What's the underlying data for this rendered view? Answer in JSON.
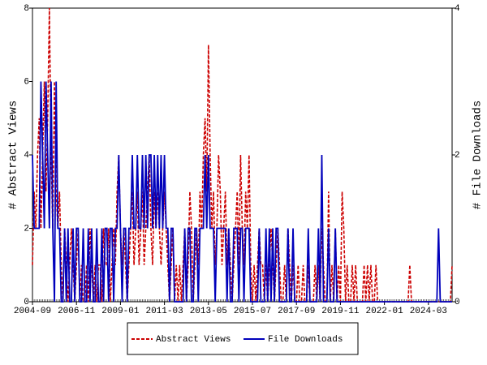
{
  "chart_data": {
    "type": "line",
    "y_label": "# Abstract Views",
    "y2_label": "# File Downloads",
    "ylim": [
      0,
      8
    ],
    "yticks": [
      0,
      2,
      4,
      6,
      8
    ],
    "y2lim": [
      0,
      4
    ],
    "y2ticks": [
      0,
      2,
      4
    ],
    "xticks": [
      "2004-09",
      "2006-11",
      "2009-01",
      "2011-03",
      "2013-05",
      "2015-07",
      "2017-09",
      "2019-11",
      "2022-01",
      "2024-03"
    ],
    "x": [
      "2004-09",
      "2004-10",
      "2004-11",
      "2004-12",
      "2005-01",
      "2005-02",
      "2005-03",
      "2005-04",
      "2005-05",
      "2005-06",
      "2005-07",
      "2005-08",
      "2005-09",
      "2005-10",
      "2005-11",
      "2005-12",
      "2006-01",
      "2006-02",
      "2006-03",
      "2006-04",
      "2006-05",
      "2006-06",
      "2006-07",
      "2006-08",
      "2006-09",
      "2006-10",
      "2006-11",
      "2006-12",
      "2007-01",
      "2007-02",
      "2007-03",
      "2007-04",
      "2007-05",
      "2007-06",
      "2007-07",
      "2007-08",
      "2007-09",
      "2007-10",
      "2007-11",
      "2007-12",
      "2008-01",
      "2008-02",
      "2008-03",
      "2008-04",
      "2008-05",
      "2008-06",
      "2008-07",
      "2008-08",
      "2008-09",
      "2008-10",
      "2008-11",
      "2008-12",
      "2009-01",
      "2009-02",
      "2009-03",
      "2009-04",
      "2009-05",
      "2009-06",
      "2009-07",
      "2009-08",
      "2009-09",
      "2009-10",
      "2009-11",
      "2009-12",
      "2010-01",
      "2010-02",
      "2010-03",
      "2010-04",
      "2010-05",
      "2010-06",
      "2010-07",
      "2010-08",
      "2010-09",
      "2010-10",
      "2010-11",
      "2010-12",
      "2011-01",
      "2011-02",
      "2011-03",
      "2011-04",
      "2011-05",
      "2011-06",
      "2011-07",
      "2011-08",
      "2011-09",
      "2011-10",
      "2011-11",
      "2011-12",
      "2012-01",
      "2012-02",
      "2012-03",
      "2012-04",
      "2012-05",
      "2012-06",
      "2012-07",
      "2012-08",
      "2012-09",
      "2012-10",
      "2012-11",
      "2012-12",
      "2013-01",
      "2013-02",
      "2013-03",
      "2013-04",
      "2013-05",
      "2013-06",
      "2013-07",
      "2013-08",
      "2013-09",
      "2013-10",
      "2013-11",
      "2013-12",
      "2014-01",
      "2014-02",
      "2014-03",
      "2014-04",
      "2014-05",
      "2014-06",
      "2014-07",
      "2014-08",
      "2014-09",
      "2014-10",
      "2014-11",
      "2014-12",
      "2015-01",
      "2015-02",
      "2015-03",
      "2015-04",
      "2015-05",
      "2015-06",
      "2015-07",
      "2015-08",
      "2015-09",
      "2015-10",
      "2015-11",
      "2015-12",
      "2016-01",
      "2016-02",
      "2016-03",
      "2016-04",
      "2016-05",
      "2016-06",
      "2016-07",
      "2016-08",
      "2016-09",
      "2016-10",
      "2016-11",
      "2016-12",
      "2017-01",
      "2017-02",
      "2017-03",
      "2017-04",
      "2017-05",
      "2017-06",
      "2017-07",
      "2017-08",
      "2017-09",
      "2017-10",
      "2017-11",
      "2017-12",
      "2018-01",
      "2018-02",
      "2018-03",
      "2018-04",
      "2018-05",
      "2018-06",
      "2018-07",
      "2018-08",
      "2018-09",
      "2018-10",
      "2018-11",
      "2018-12",
      "2019-01",
      "2019-02",
      "2019-03",
      "2019-04",
      "2019-05",
      "2019-06",
      "2019-07",
      "2019-08",
      "2019-09",
      "2019-10",
      "2019-11",
      "2019-12",
      "2020-01",
      "2020-02",
      "2020-03",
      "2020-04",
      "2020-05",
      "2020-06",
      "2020-07",
      "2020-08",
      "2020-09",
      "2020-10",
      "2020-11",
      "2020-12",
      "2021-01",
      "2021-02",
      "2021-03",
      "2021-04",
      "2021-05",
      "2021-06",
      "2021-07",
      "2021-08",
      "2021-09",
      "2021-10",
      "2021-11",
      "2021-12",
      "2022-01",
      "2022-02",
      "2022-03",
      "2022-04",
      "2022-05",
      "2022-06",
      "2022-07",
      "2022-08",
      "2022-09",
      "2022-10",
      "2022-11",
      "2022-12",
      "2023-01",
      "2023-02",
      "2023-03",
      "2023-04",
      "2023-05",
      "2023-06",
      "2023-07",
      "2023-08",
      "2023-09",
      "2023-10",
      "2023-11",
      "2023-12",
      "2024-01",
      "2024-02",
      "2024-03",
      "2024-04",
      "2024-05",
      "2024-06",
      "2024-07",
      "2024-08",
      "2024-09",
      "2024-10",
      "2024-11",
      "2024-12",
      "2025-01",
      "2025-02",
      "2025-03",
      "2025-04",
      "2025-05"
    ],
    "series": [
      {
        "name": "Abstract Views",
        "color": "#cc0000",
        "dash": true,
        "values": [
          1,
          3,
          2,
          4,
          5,
          2,
          4,
          6,
          3,
          5,
          8,
          4,
          2,
          6,
          3,
          2,
          3,
          1,
          0,
          2,
          1,
          0,
          1,
          2,
          1,
          0,
          1,
          2,
          0,
          1,
          0,
          0,
          1,
          0,
          2,
          1,
          0,
          1,
          0,
          1,
          1,
          0,
          2,
          1,
          1,
          2,
          0,
          1,
          2,
          1,
          3,
          4,
          2,
          1,
          2,
          1,
          0,
          1,
          2,
          3,
          1,
          2,
          3,
          1,
          2,
          3,
          1,
          2,
          3,
          4,
          2,
          1,
          3,
          2,
          3,
          2,
          1,
          2,
          3,
          2,
          1,
          0,
          1,
          2,
          0,
          1,
          0,
          1,
          0,
          1,
          2,
          0,
          1,
          3,
          2,
          0,
          1,
          2,
          1,
          3,
          2,
          4,
          5,
          3,
          7,
          4,
          2,
          3,
          1,
          2,
          4,
          3,
          1,
          2,
          3,
          1,
          2,
          1,
          0,
          1,
          2,
          3,
          1,
          4,
          2,
          1,
          3,
          2,
          4,
          1,
          0,
          1,
          0,
          1,
          2,
          1,
          1,
          0,
          1,
          0,
          1,
          2,
          1,
          0,
          1,
          2,
          1,
          0,
          0,
          1,
          0,
          2,
          1,
          0,
          1,
          0,
          0,
          1,
          0,
          0,
          1,
          0,
          0,
          1,
          0,
          0,
          0,
          1,
          0,
          1,
          0,
          2,
          1,
          0,
          0,
          3,
          0,
          1,
          0,
          2,
          0,
          1,
          0,
          3,
          2,
          0,
          1,
          0,
          0,
          1,
          0,
          1,
          0,
          0,
          0,
          0,
          1,
          0,
          1,
          0,
          1,
          0,
          0,
          1,
          0,
          0,
          0,
          0,
          0,
          0,
          0,
          0,
          0,
          0,
          0,
          0,
          0,
          0,
          0,
          0,
          0,
          0,
          0,
          1,
          0,
          0,
          0,
          0,
          0,
          0,
          0,
          0,
          0,
          0,
          0,
          0,
          0,
          0,
          0,
          0,
          0,
          0,
          0,
          0,
          0,
          0,
          0,
          0,
          1
        ]
      },
      {
        "name": "File Downloads",
        "color": "#0000bb",
        "axis": "y2",
        "values": [
          2,
          1,
          1,
          1,
          1,
          3,
          2,
          1,
          3,
          2,
          1,
          3,
          1,
          0,
          3,
          1,
          1,
          0,
          0,
          1,
          0,
          1,
          0,
          0,
          1,
          0,
          1,
          1,
          0,
          0,
          1,
          0,
          0,
          1,
          0,
          1,
          0,
          0,
          1,
          0,
          0,
          1,
          0,
          1,
          1,
          0,
          1,
          1,
          0,
          1,
          1,
          2,
          1,
          0,
          1,
          1,
          0,
          1,
          1,
          2,
          1,
          1,
          2,
          1,
          1,
          2,
          1,
          2,
          1,
          2,
          2,
          1,
          2,
          1,
          2,
          1,
          2,
          1,
          2,
          1,
          1,
          0,
          1,
          1,
          0,
          0,
          0,
          0,
          0,
          0,
          1,
          0,
          1,
          1,
          0,
          0,
          1,
          1,
          0,
          1,
          1,
          1,
          2,
          1,
          2,
          1,
          1,
          1,
          0,
          1,
          1,
          1,
          1,
          1,
          1,
          0,
          1,
          0,
          0,
          1,
          1,
          1,
          0,
          1,
          1,
          0,
          1,
          1,
          1,
          0,
          0,
          0,
          0,
          0,
          1,
          0,
          0,
          0,
          1,
          0,
          1,
          0,
          1,
          0,
          1,
          1,
          0,
          0,
          0,
          0,
          0,
          1,
          0,
          0,
          1,
          0,
          0,
          0,
          0,
          0,
          0,
          0,
          0,
          1,
          0,
          0,
          0,
          0,
          0,
          1,
          0,
          2,
          0,
          0,
          0,
          1,
          0,
          0,
          0,
          1,
          0,
          0,
          0,
          0,
          0,
          0,
          0,
          0,
          0,
          0,
          0,
          0,
          0,
          0,
          0,
          0,
          0,
          0,
          0,
          0,
          0,
          0,
          0,
          0,
          0,
          0,
          0,
          0,
          0,
          0,
          0,
          0,
          0,
          0,
          0,
          0,
          0,
          0,
          0,
          0,
          0,
          0,
          0,
          0,
          0,
          0,
          0,
          0,
          0,
          0,
          0,
          0,
          0,
          0,
          0,
          0,
          0,
          0,
          0,
          0,
          1,
          0,
          0,
          0,
          0,
          0,
          0,
          0,
          0
        ]
      }
    ]
  }
}
